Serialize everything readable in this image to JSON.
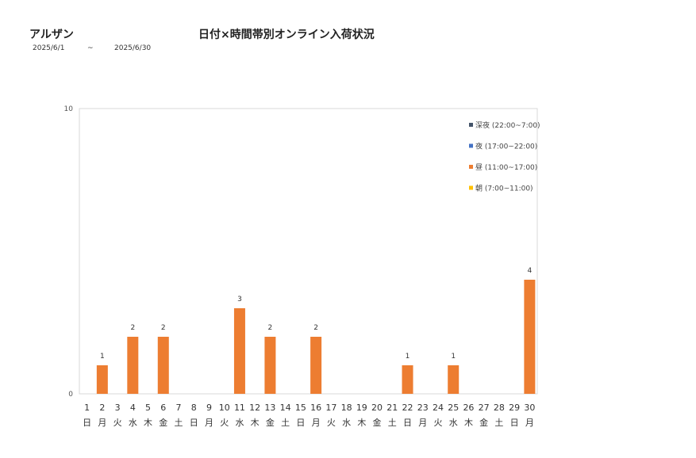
{
  "header": {
    "brand": "アルザン",
    "title": "日付×時間帯別オンライン入荷状況",
    "period_start": "2025/6/1",
    "period_sep": "~",
    "period_end": "2025/6/30"
  },
  "chart_data": {
    "type": "bar",
    "stacked": true,
    "categories": [
      "1",
      "2",
      "3",
      "4",
      "5",
      "6",
      "7",
      "8",
      "9",
      "10",
      "11",
      "12",
      "13",
      "14",
      "15",
      "16",
      "17",
      "18",
      "19",
      "20",
      "21",
      "22",
      "23",
      "24",
      "25",
      "26",
      "27",
      "28",
      "29",
      "30"
    ],
    "weekdays": [
      "日",
      "月",
      "火",
      "水",
      "木",
      "金",
      "土",
      "日",
      "月",
      "火",
      "水",
      "木",
      "金",
      "土",
      "日",
      "月",
      "火",
      "水",
      "木",
      "金",
      "土",
      "日",
      "月",
      "火",
      "水",
      "木",
      "金",
      "土",
      "日",
      "月"
    ],
    "ylim": [
      0,
      10
    ],
    "yticks": [
      0,
      10
    ],
    "legend_position": "right",
    "series": [
      {
        "name": "深夜 (22:00~7:00)",
        "color": "#44546A",
        "values": [
          0,
          0,
          0,
          0,
          0,
          0,
          0,
          0,
          0,
          0,
          0,
          0,
          0,
          0,
          0,
          0,
          0,
          0,
          0,
          0,
          0,
          0,
          0,
          0,
          0,
          0,
          0,
          0,
          0,
          0
        ]
      },
      {
        "name": "夜 (17:00~22:00)",
        "color": "#4472C4",
        "values": [
          0,
          0,
          0,
          0,
          0,
          0,
          0,
          0,
          0,
          0,
          0,
          0,
          0,
          0,
          0,
          0,
          0,
          0,
          0,
          0,
          0,
          0,
          0,
          0,
          0,
          0,
          0,
          0,
          0,
          0
        ]
      },
      {
        "name": "昼 (11:00~17:00)",
        "color": "#ED7D31",
        "values": [
          0,
          1,
          0,
          2,
          0,
          2,
          0,
          0,
          0,
          0,
          3,
          0,
          2,
          0,
          0,
          2,
          0,
          0,
          0,
          0,
          0,
          1,
          0,
          0,
          1,
          0,
          0,
          0,
          0,
          4
        ]
      },
      {
        "name": "朝 (7:00~11:00)",
        "color": "#FFC000",
        "values": [
          0,
          0,
          0,
          0,
          0,
          0,
          0,
          0,
          0,
          0,
          0,
          0,
          0,
          0,
          0,
          0,
          0,
          0,
          0,
          0,
          0,
          0,
          0,
          0,
          0,
          0,
          0,
          0,
          0,
          0
        ]
      }
    ]
  }
}
